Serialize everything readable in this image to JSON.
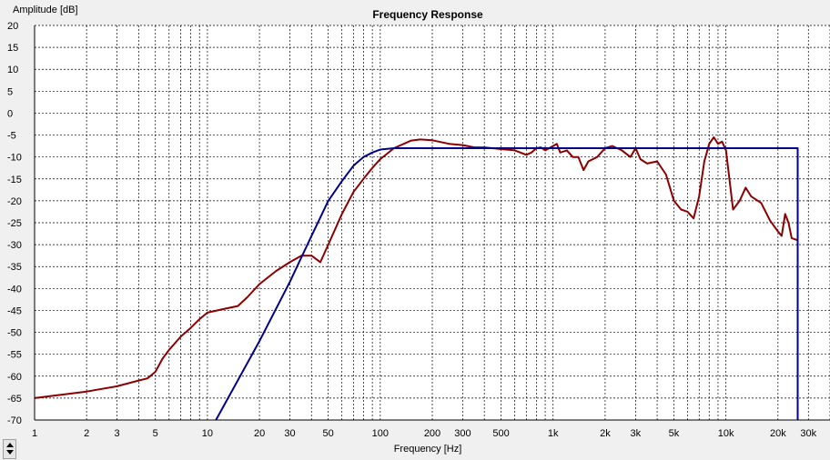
{
  "chart_data": {
    "type": "line",
    "title": "Frequency Response",
    "xlabel": "Frequency [Hz]",
    "ylabel": "Amplitude [dB]",
    "x_scale": "log",
    "xlim": [
      1,
      40000
    ],
    "ylim": [
      -70,
      20
    ],
    "grid": true,
    "x_ticks": [
      {
        "value": 1,
        "label": "1"
      },
      {
        "value": 2,
        "label": "2"
      },
      {
        "value": 3,
        "label": "3"
      },
      {
        "value": 5,
        "label": "5"
      },
      {
        "value": 10,
        "label": "10"
      },
      {
        "value": 20,
        "label": "20"
      },
      {
        "value": 30,
        "label": "30"
      },
      {
        "value": 50,
        "label": "50"
      },
      {
        "value": 100,
        "label": "100"
      },
      {
        "value": 200,
        "label": "200"
      },
      {
        "value": 300,
        "label": "300"
      },
      {
        "value": 500,
        "label": "500"
      },
      {
        "value": 1000,
        "label": "1k"
      },
      {
        "value": 2000,
        "label": "2k"
      },
      {
        "value": 3000,
        "label": "3k"
      },
      {
        "value": 5000,
        "label": "5k"
      },
      {
        "value": 10000,
        "label": "10k"
      },
      {
        "value": 20000,
        "label": "20k"
      },
      {
        "value": 30000,
        "label": "30k"
      }
    ],
    "y_ticks": [
      "20",
      "15",
      "10",
      "5",
      "0",
      "-5",
      "-10",
      "-15",
      "-20",
      "-25",
      "-30",
      "-35",
      "-40",
      "-45",
      "-50",
      "-55",
      "-60",
      "-65",
      "-70"
    ],
    "series": [
      {
        "color": "#8b0000",
        "points": [
          [
            1,
            -65
          ],
          [
            2,
            -63.5
          ],
          [
            3,
            -62.3
          ],
          [
            4,
            -61
          ],
          [
            4.5,
            -60.5
          ],
          [
            5,
            -59
          ],
          [
            5.5,
            -56
          ],
          [
            6,
            -54
          ],
          [
            7,
            -51
          ],
          [
            8,
            -49
          ],
          [
            9,
            -47
          ],
          [
            10,
            -45.5
          ],
          [
            12,
            -44.8
          ],
          [
            15,
            -44
          ],
          [
            17,
            -42
          ],
          [
            20,
            -39
          ],
          [
            25,
            -36
          ],
          [
            30,
            -34
          ],
          [
            35,
            -32.5
          ],
          [
            40,
            -32.5
          ],
          [
            45,
            -34
          ],
          [
            50,
            -30
          ],
          [
            60,
            -23
          ],
          [
            70,
            -18
          ],
          [
            80,
            -15
          ],
          [
            90,
            -12.5
          ],
          [
            100,
            -10.5
          ],
          [
            120,
            -8
          ],
          [
            150,
            -6.3
          ],
          [
            170,
            -6
          ],
          [
            200,
            -6.2
          ],
          [
            250,
            -7
          ],
          [
            300,
            -7.3
          ],
          [
            350,
            -7.8
          ],
          [
            400,
            -7.8
          ],
          [
            500,
            -8.2
          ],
          [
            600,
            -8.5
          ],
          [
            700,
            -9.5
          ],
          [
            750,
            -9
          ],
          [
            800,
            -8
          ],
          [
            850,
            -7.8
          ],
          [
            900,
            -8.5
          ],
          [
            950,
            -8
          ],
          [
            1000,
            -7.5
          ],
          [
            1050,
            -7
          ],
          [
            1100,
            -9
          ],
          [
            1200,
            -8.5
          ],
          [
            1300,
            -10
          ],
          [
            1400,
            -10
          ],
          [
            1500,
            -13
          ],
          [
            1600,
            -11
          ],
          [
            1800,
            -10
          ],
          [
            2000,
            -8
          ],
          [
            2200,
            -7.5
          ],
          [
            2500,
            -8.5
          ],
          [
            2800,
            -10
          ],
          [
            3000,
            -8
          ],
          [
            3200,
            -10.5
          ],
          [
            3500,
            -11.5
          ],
          [
            4000,
            -11
          ],
          [
            4500,
            -14
          ],
          [
            5000,
            -20
          ],
          [
            5500,
            -22
          ],
          [
            6000,
            -22.5
          ],
          [
            6500,
            -24
          ],
          [
            7000,
            -19
          ],
          [
            7500,
            -11
          ],
          [
            8000,
            -7
          ],
          [
            8500,
            -5.5
          ],
          [
            9000,
            -7
          ],
          [
            9500,
            -6.5
          ],
          [
            10000,
            -8.5
          ],
          [
            11000,
            -22
          ],
          [
            12000,
            -20
          ],
          [
            13000,
            -17
          ],
          [
            14000,
            -19
          ],
          [
            16000,
            -20.5
          ],
          [
            18000,
            -24.5
          ],
          [
            20000,
            -27
          ],
          [
            21000,
            -28
          ],
          [
            22000,
            -23
          ],
          [
            23000,
            -25
          ],
          [
            24000,
            -28.5
          ],
          [
            26000,
            -29
          ]
        ]
      },
      {
        "color": "#00008b",
        "points": [
          [
            11.2,
            -70
          ],
          [
            20,
            -52
          ],
          [
            30,
            -38.5
          ],
          [
            40,
            -28
          ],
          [
            50,
            -20
          ],
          [
            60,
            -15.5
          ],
          [
            70,
            -12
          ],
          [
            80,
            -10
          ],
          [
            90,
            -9
          ],
          [
            100,
            -8.3
          ],
          [
            120,
            -8
          ],
          [
            200,
            -8
          ],
          [
            1000,
            -8
          ],
          [
            10000,
            -8
          ],
          [
            26000,
            -8
          ],
          [
            26000,
            -70
          ]
        ]
      }
    ]
  }
}
